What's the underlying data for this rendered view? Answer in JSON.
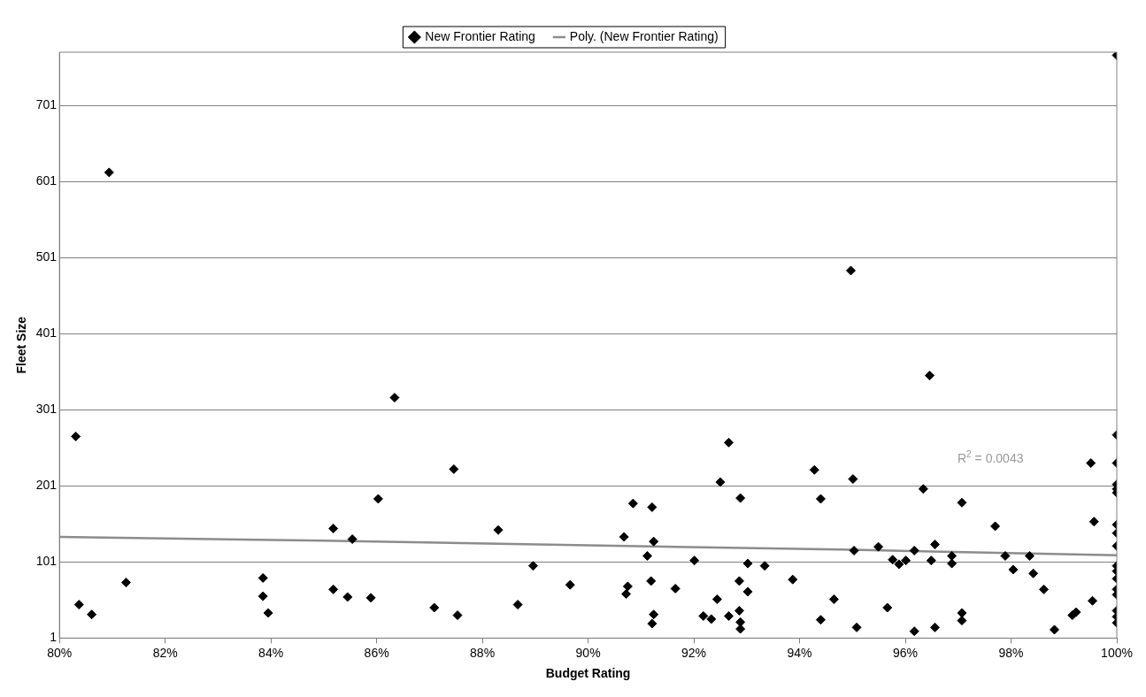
{
  "chart_data": {
    "type": "scatter",
    "xlabel": "Budget Rating",
    "ylabel": "Fleet Size",
    "xlim": [
      80,
      100
    ],
    "ylim": [
      1,
      771
    ],
    "xticks": [
      {
        "value": 80,
        "label": "80%"
      },
      {
        "value": 82,
        "label": "82%"
      },
      {
        "value": 84,
        "label": "84%"
      },
      {
        "value": 86,
        "label": "86%"
      },
      {
        "value": 88,
        "label": "88%"
      },
      {
        "value": 90,
        "label": "90%"
      },
      {
        "value": 92,
        "label": "92%"
      },
      {
        "value": 94,
        "label": "94%"
      },
      {
        "value": 96,
        "label": "96%"
      },
      {
        "value": 98,
        "label": "98%"
      },
      {
        "value": 100,
        "label": "100%"
      }
    ],
    "yticks": [
      1,
      101,
      201,
      301,
      401,
      501,
      601,
      701
    ],
    "grid": "y",
    "legend": "top",
    "marker": "diamond",
    "annotations": [
      "R$^{2}$ = 0.0043"
    ],
    "series": [
      {
        "name": "New Frontier Rating",
        "type": "scatter",
        "color": "#000000",
        "x": [
          80.31,
          80.37,
          80.61,
          80.94,
          81.26,
          83.85,
          83.85,
          83.95,
          85.18,
          85.18,
          85.45,
          85.54,
          85.89,
          86.03,
          86.34,
          87.09,
          87.46,
          87.53,
          88.3,
          88.67,
          88.96,
          89.66,
          90.68,
          90.72,
          90.75,
          90.85,
          91.12,
          91.19,
          91.21,
          91.21,
          91.24,
          91.24,
          91.65,
          92.01,
          92.18,
          92.33,
          92.44,
          92.5,
          92.66,
          92.66,
          92.86,
          92.86,
          92.88,
          92.88,
          92.88,
          93.02,
          93.02,
          93.34,
          93.87,
          94.28,
          94.4,
          94.4,
          94.65,
          94.97,
          95.01,
          95.03,
          95.08,
          95.49,
          95.66,
          95.76,
          95.88,
          96.01,
          96.17,
          96.17,
          96.34,
          96.46,
          96.49,
          96.56,
          96.56,
          96.88,
          96.88,
          97.07,
          97.07,
          97.07,
          97.7,
          97.89,
          98.04,
          98.35,
          98.42,
          98.62,
          98.82,
          99.16,
          99.23,
          99.51,
          99.54,
          99.57,
          100,
          100,
          100,
          100,
          100,
          100,
          100,
          100,
          100,
          100,
          100,
          100,
          100,
          100,
          100,
          100,
          100
        ],
        "values": [
          266,
          45,
          32,
          613,
          74,
          80,
          56,
          34,
          145,
          65,
          55,
          131,
          54,
          184,
          317,
          41,
          223,
          31,
          143,
          45,
          96,
          71,
          134,
          59,
          69,
          178,
          109,
          76,
          173,
          20,
          128,
          32,
          66,
          103,
          30,
          26,
          52,
          206,
          258,
          30,
          76,
          37,
          185,
          22,
          13,
          62,
          99,
          96,
          78,
          222,
          184,
          25,
          52,
          484,
          210,
          116,
          15,
          121,
          41,
          104,
          98,
          103,
          116,
          10,
          197,
          346,
          103,
          124,
          15,
          109,
          99,
          179,
          34,
          24,
          148,
          109,
          91,
          109,
          86,
          65,
          12,
          31,
          35,
          231,
          50,
          154,
          767,
          268,
          231,
          203,
          197,
          192,
          150,
          139,
          122,
          96,
          89,
          79,
          65,
          58,
          37,
          29,
          21
        ]
      },
      {
        "name": "Poly. (New Frontier Rating)",
        "type": "line",
        "color": "#8c8c8c",
        "marker": "none",
        "x": [
          80,
          85,
          90,
          95,
          100
        ],
        "values": [
          134,
          129,
          123,
          117,
          110
        ]
      }
    ]
  }
}
